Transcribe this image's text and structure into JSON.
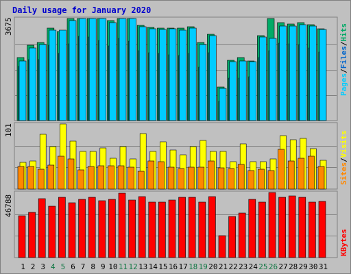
{
  "title": "Daily usage for January 2020",
  "colors": {
    "background": "#c0c0c0",
    "pages": "#00ccff",
    "files": "#0066cc",
    "hits": "#00aa66",
    "sites": "#ff8800",
    "visits": "#ffff00",
    "kbytes": "#ff0000",
    "weekend_label": "#117744",
    "weekday_label": "#000000"
  },
  "legends": {
    "top": [
      "Pages",
      "/",
      "Files",
      "/",
      "Hits"
    ],
    "middle": [
      "Sites",
      "/",
      "Visits"
    ],
    "bottom": [
      "KBytes"
    ]
  },
  "chart_data": [
    {
      "type": "bar",
      "panel": "hits_files_pages",
      "ymax_label": "3675",
      "ylim": [
        0,
        3675
      ],
      "categories": [
        "1",
        "2",
        "3",
        "4",
        "5",
        "6",
        "7",
        "8",
        "9",
        "10",
        "11",
        "12",
        "13",
        "14",
        "15",
        "16",
        "17",
        "18",
        "19",
        "20",
        "21",
        "22",
        "23",
        "24",
        "25",
        "26",
        "27",
        "28",
        "29",
        "30",
        "31"
      ],
      "series": [
        {
          "name": "Hits",
          "values": [
            2270,
            2720,
            2810,
            3340,
            3200,
            3670,
            3760,
            3800,
            3740,
            3590,
            3850,
            3710,
            3440,
            3360,
            3340,
            3330,
            3330,
            3390,
            2800,
            3100,
            1210,
            2160,
            2260,
            2140,
            3070,
            3770,
            3520,
            3470,
            3520,
            3460,
            3300
          ]
        },
        {
          "name": "Files",
          "values": [
            1960,
            2190,
            2190,
            2710,
            2410,
            2770,
            3030,
            3010,
            2880,
            2680,
            2970,
            2870,
            2520,
            2430,
            2410,
            2380,
            2340,
            2420,
            1920,
            2440,
            700,
            1520,
            1520,
            1590,
            2280,
            2520,
            2780,
            2760,
            2730,
            2620,
            2460
          ]
        },
        {
          "name": "Pages",
          "values": [
            2150,
            2610,
            2740,
            3260,
            3250,
            3590,
            3710,
            3770,
            3680,
            3520,
            3800,
            3670,
            3380,
            3310,
            3290,
            3310,
            3250,
            3330,
            2740,
            3070,
            1160,
            2130,
            2150,
            2130,
            3000,
            2960,
            3400,
            3400,
            3460,
            3410,
            3280
          ]
        }
      ]
    },
    {
      "type": "bar",
      "panel": "visits_sites",
      "ymax_label": "101",
      "ylim": [
        0,
        101
      ],
      "categories": [
        "1",
        "2",
        "3",
        "4",
        "5",
        "6",
        "7",
        "8",
        "9",
        "10",
        "11",
        "12",
        "13",
        "14",
        "15",
        "16",
        "17",
        "18",
        "19",
        "20",
        "21",
        "22",
        "23",
        "24",
        "25",
        "26",
        "27",
        "28",
        "29",
        "30",
        "31"
      ],
      "series": [
        {
          "name": "Visits",
          "values": [
            41,
            44,
            85,
            66,
            104,
            74,
            59,
            59,
            64,
            48,
            66,
            47,
            86,
            58,
            73,
            61,
            53,
            66,
            75,
            59,
            59,
            43,
            70,
            42,
            43,
            47,
            83,
            77,
            79,
            63,
            45
          ]
        },
        {
          "name": "Sites",
          "values": [
            35,
            35,
            31,
            37,
            51,
            47,
            30,
            35,
            36,
            36,
            36,
            34,
            28,
            44,
            43,
            34,
            32,
            34,
            34,
            44,
            33,
            32,
            38,
            29,
            31,
            29,
            62,
            44,
            48,
            51,
            35
          ]
        }
      ]
    },
    {
      "type": "bar",
      "panel": "kbytes",
      "ymax_label": "46788",
      "ylim": [
        0,
        46788
      ],
      "categories": [
        "1",
        "2",
        "3",
        "4",
        "5",
        "6",
        "7",
        "8",
        "9",
        "10",
        "11",
        "12",
        "13",
        "14",
        "15",
        "16",
        "17",
        "18",
        "19",
        "20",
        "21",
        "22",
        "23",
        "24",
        "25",
        "26",
        "27",
        "28",
        "29",
        "30",
        "31"
      ],
      "series": [
        {
          "name": "KBytes",
          "values": [
            29930,
            32630,
            42220,
            37020,
            43570,
            39540,
            41640,
            43140,
            41050,
            41720,
            46050,
            41470,
            43870,
            39660,
            39960,
            41180,
            43430,
            43430,
            40050,
            43900,
            15790,
            29410,
            32140,
            41720,
            39830,
            48000,
            43320,
            44140,
            43240,
            40100,
            40270
          ]
        }
      ]
    }
  ],
  "weekend_days": [
    "4",
    "5",
    "11",
    "12",
    "18",
    "19",
    "25",
    "26"
  ]
}
